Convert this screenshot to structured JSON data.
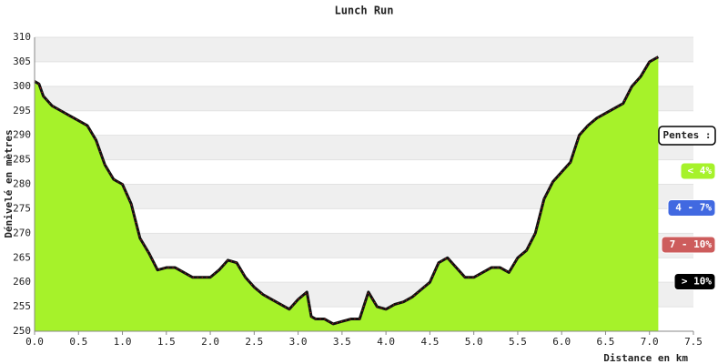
{
  "chart_data": {
    "type": "area",
    "title": "Lunch Run",
    "x_label": "Distance en km",
    "y_label": "Dénivelé en mètres",
    "x": [
      0.0,
      0.05,
      0.1,
      0.2,
      0.3,
      0.4,
      0.5,
      0.6,
      0.7,
      0.8,
      0.9,
      1.0,
      1.1,
      1.2,
      1.3,
      1.4,
      1.5,
      1.6,
      1.7,
      1.8,
      1.9,
      2.0,
      2.1,
      2.2,
      2.3,
      2.4,
      2.5,
      2.6,
      2.7,
      2.8,
      2.9,
      3.0,
      3.1,
      3.15,
      3.2,
      3.3,
      3.4,
      3.5,
      3.6,
      3.7,
      3.8,
      3.9,
      4.0,
      4.1,
      4.2,
      4.3,
      4.4,
      4.5,
      4.6,
      4.7,
      4.8,
      4.9,
      5.0,
      5.1,
      5.2,
      5.3,
      5.4,
      5.5,
      5.6,
      5.7,
      5.8,
      5.9,
      6.0,
      6.1,
      6.2,
      6.3,
      6.4,
      6.5,
      6.6,
      6.7,
      6.8,
      6.9,
      7.0,
      7.1
    ],
    "series": [
      {
        "color": "#a6f22a",
        "line_color": "#111111",
        "values": [
          301,
          300.5,
          298,
          296,
          295,
          294,
          293,
          292,
          289,
          284,
          281,
          280,
          276,
          269,
          266,
          262.5,
          263,
          263,
          262,
          261,
          261,
          261,
          262.5,
          264.5,
          264,
          261,
          259,
          257.5,
          256.5,
          255.5,
          254.5,
          256.5,
          258,
          253,
          252.5,
          252.5,
          251.5,
          252,
          252.5,
          252.5,
          258,
          255,
          254.5,
          255.5,
          256,
          257,
          258.5,
          260,
          264,
          265,
          263,
          261,
          261,
          262,
          263,
          263,
          262,
          265,
          266.5,
          270,
          277,
          280.5,
          282.5,
          284.5,
          290,
          292,
          293.5,
          294.5,
          295.5,
          296.5,
          300,
          302,
          305,
          306
        ]
      }
    ],
    "xlim": [
      0,
      7.5
    ],
    "ylim": [
      250,
      310
    ],
    "xticks": [
      {
        "value": 0,
        "label": "0.0"
      },
      0.5,
      {
        "value": 1,
        "label": "1.0"
      },
      1.5,
      {
        "value": 2,
        "label": "2.0"
      },
      2.5,
      {
        "value": 3,
        "label": "3.0"
      },
      3.5,
      {
        "value": 4,
        "label": "4.0"
      },
      4.5,
      {
        "value": 5,
        "label": "5.0"
      },
      5.5,
      {
        "value": 6,
        "label": "6.0"
      },
      6.5,
      {
        "value": 7,
        "label": "7.0"
      },
      7.5
    ],
    "yticks": [
      250,
      255,
      260,
      265,
      270,
      275,
      280,
      285,
      290,
      295,
      300,
      305,
      310
    ],
    "grid": true,
    "legend": {
      "title": "Pentes :",
      "items": [
        {
          "label": "< 4%",
          "color": "#a6f22a"
        },
        {
          "label": "4 - 7%",
          "color": "#4169e1"
        },
        {
          "label": "7 - 10%",
          "color": "#cd5c5c"
        },
        {
          "label": "> 10%",
          "color": "#000000"
        }
      ]
    }
  }
}
